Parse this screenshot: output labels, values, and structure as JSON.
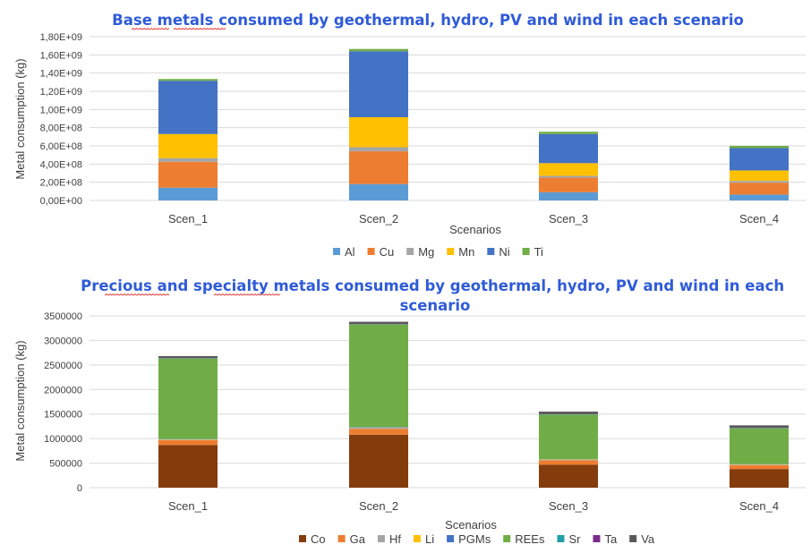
{
  "chart_data": [
    {
      "type": "bar",
      "stacked": true,
      "title": "Base metals consumed by geothermal, hydro, PV and wind in each scenario",
      "xlabel": "Scenarios",
      "ylabel": "Metal consumption (kg)",
      "ylim": [
        0,
        1800000000
      ],
      "yticks": [
        "0,00E+00",
        "2,00E+08",
        "4,00E+08",
        "6,00E+08",
        "8,00E+08",
        "1,00E+09",
        "1,20E+09",
        "1,40E+09",
        "1,60E+09",
        "1,80E+09"
      ],
      "grid": true,
      "legend": "bottom",
      "categories": [
        "Scen_1",
        "Scen_2",
        "Scen_3",
        "Scen_4"
      ],
      "series": [
        {
          "name": "Al",
          "color": "#5b9bd5",
          "values": [
            140000000,
            180000000,
            90000000,
            65000000
          ]
        },
        {
          "name": "Cu",
          "color": "#ed7d31",
          "values": [
            285000000,
            360000000,
            160000000,
            130000000
          ]
        },
        {
          "name": "Mg",
          "color": "#a5a5a5",
          "values": [
            40000000,
            45000000,
            20000000,
            20000000
          ]
        },
        {
          "name": "Mn",
          "color": "#ffc000",
          "values": [
            265000000,
            330000000,
            140000000,
            115000000
          ]
        },
        {
          "name": "Ni",
          "color": "#4472c4",
          "values": [
            585000000,
            725000000,
            320000000,
            245000000
          ]
        },
        {
          "name": "Ti",
          "color": "#70ad47",
          "values": [
            20000000,
            25000000,
            25000000,
            25000000
          ]
        }
      ]
    },
    {
      "type": "bar",
      "stacked": true,
      "title": "Precious and specialty metals consumed by geothermal, hydro, PV and wind in each scenario",
      "xlabel": "Scenarios",
      "ylabel": "Metal consumption (kg)",
      "ylim": [
        0,
        3500000
      ],
      "yticks": [
        "0",
        "500000",
        "1000000",
        "1500000",
        "2000000",
        "2500000",
        "3000000",
        "3500000"
      ],
      "grid": true,
      "legend": "bottom",
      "categories": [
        "Scen_1",
        "Scen_2",
        "Scen_3",
        "Scen_4"
      ],
      "series": [
        {
          "name": "Co",
          "color": "#843c0c",
          "values": [
            870000,
            1080000,
            470000,
            380000
          ]
        },
        {
          "name": "Ga",
          "color": "#ed7d31",
          "values": [
            100000,
            120000,
            90000,
            80000
          ]
        },
        {
          "name": "Hf",
          "color": "#a5a5a5",
          "values": [
            10000,
            20000,
            10000,
            10000
          ]
        },
        {
          "name": "Li",
          "color": "#ffc000",
          "values": [
            5000,
            5000,
            5000,
            5000
          ]
        },
        {
          "name": "PGMs",
          "color": "#4472c4",
          "values": [
            5000,
            10000,
            5000,
            5000
          ]
        },
        {
          "name": "REEs",
          "color": "#70ad47",
          "values": [
            1640000,
            2090000,
            910000,
            730000
          ]
        },
        {
          "name": "Sr",
          "color": "#1f9fa6",
          "values": [
            5000,
            5000,
            5000,
            5000
          ]
        },
        {
          "name": "Ta",
          "color": "#7b2c8c",
          "values": [
            5000,
            5000,
            5000,
            5000
          ]
        },
        {
          "name": "Va",
          "color": "#595959",
          "values": [
            40000,
            45000,
            50000,
            50000
          ]
        }
      ]
    }
  ]
}
